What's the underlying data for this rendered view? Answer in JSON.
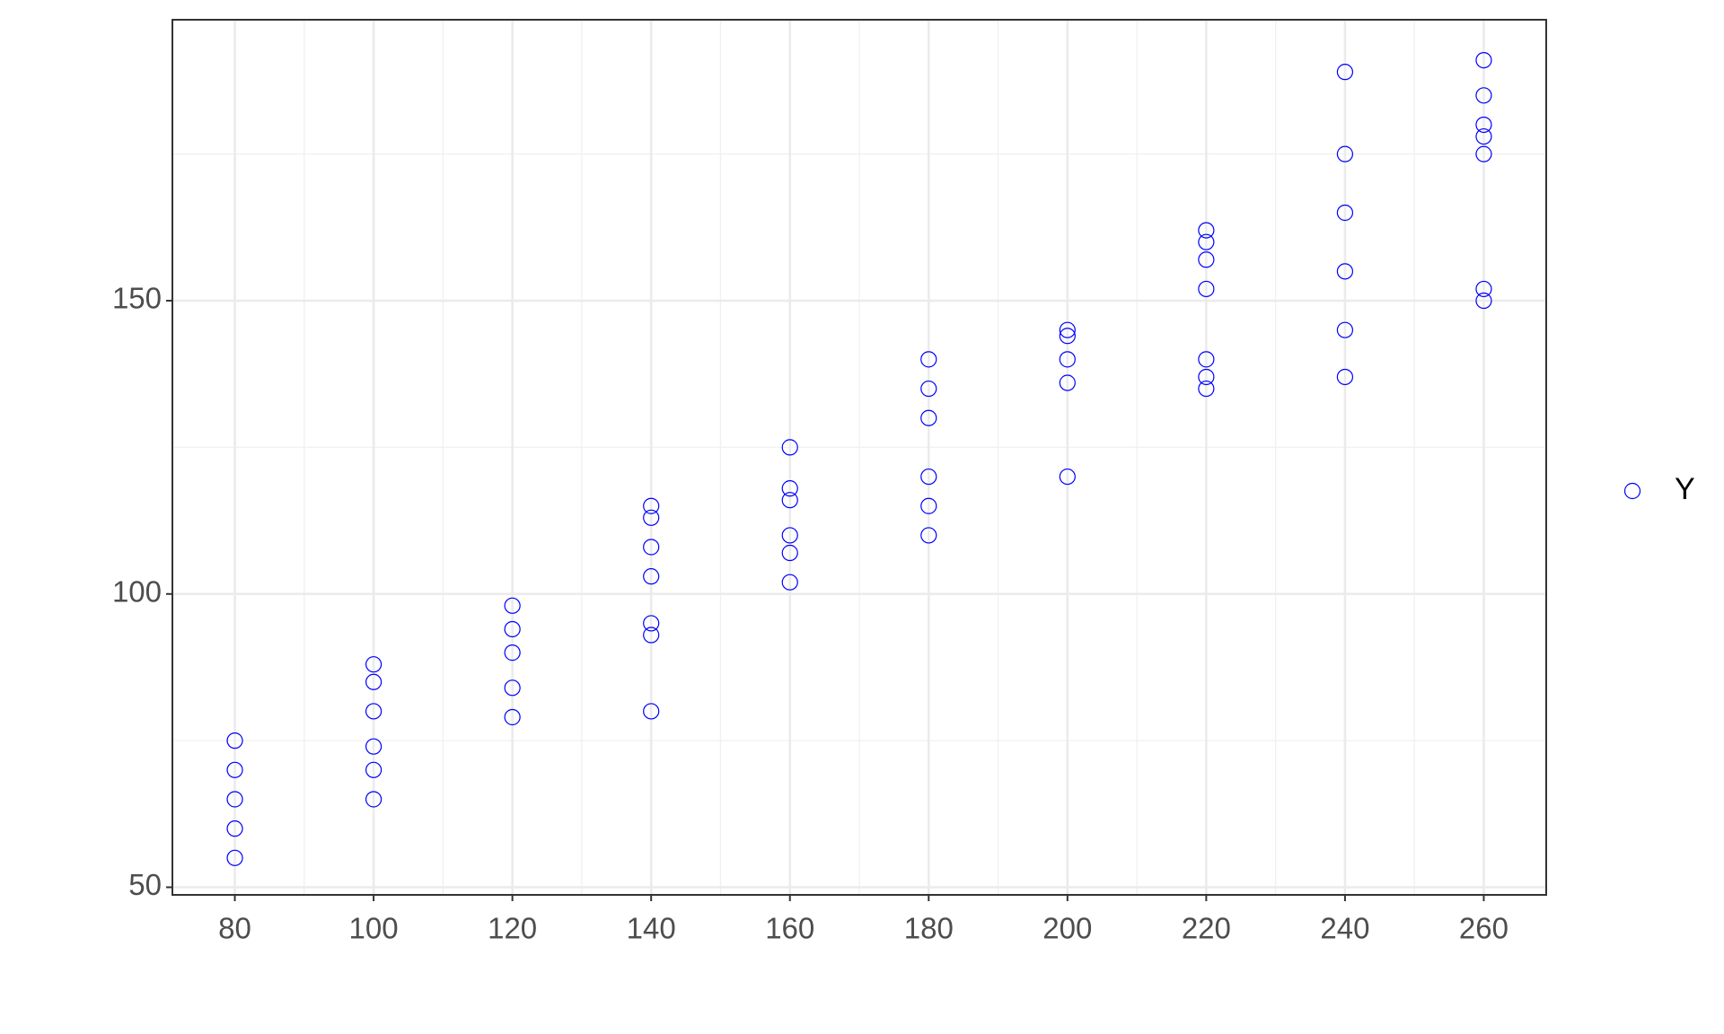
{
  "chart_data": {
    "type": "scatter",
    "xlim": [
      71,
      269
    ],
    "ylim": [
      48.7,
      197.9
    ],
    "xticks": [
      80,
      100,
      120,
      140,
      160,
      180,
      200,
      220,
      240,
      260
    ],
    "yticks": [
      50,
      100,
      150
    ],
    "grid": true,
    "legend": "right",
    "series": [
      {
        "name": "Y",
        "color": "#0000ff",
        "x": [
          80,
          80,
          80,
          80,
          80,
          100,
          100,
          100,
          100,
          100,
          100,
          120,
          120,
          120,
          120,
          120,
          140,
          140,
          140,
          140,
          140,
          140,
          140,
          160,
          160,
          160,
          160,
          160,
          160,
          180,
          180,
          180,
          180,
          180,
          180,
          200,
          200,
          200,
          200,
          200,
          220,
          220,
          220,
          220,
          220,
          220,
          220,
          240,
          240,
          240,
          240,
          240,
          240,
          260,
          260,
          260,
          260,
          260,
          260,
          260
        ],
        "values": [
          75,
          70,
          65,
          60,
          55,
          88,
          85,
          80,
          74,
          70,
          65,
          98,
          94,
          90,
          84,
          79,
          115,
          113,
          108,
          103,
          95,
          93,
          80,
          125,
          118,
          116,
          110,
          107,
          102,
          140,
          135,
          130,
          120,
          115,
          110,
          145,
          144,
          140,
          136,
          120,
          162,
          160,
          157,
          152,
          140,
          137,
          135,
          189,
          175,
          165,
          155,
          145,
          137,
          191,
          185,
          180,
          178,
          175,
          152,
          150
        ]
      }
    ]
  }
}
